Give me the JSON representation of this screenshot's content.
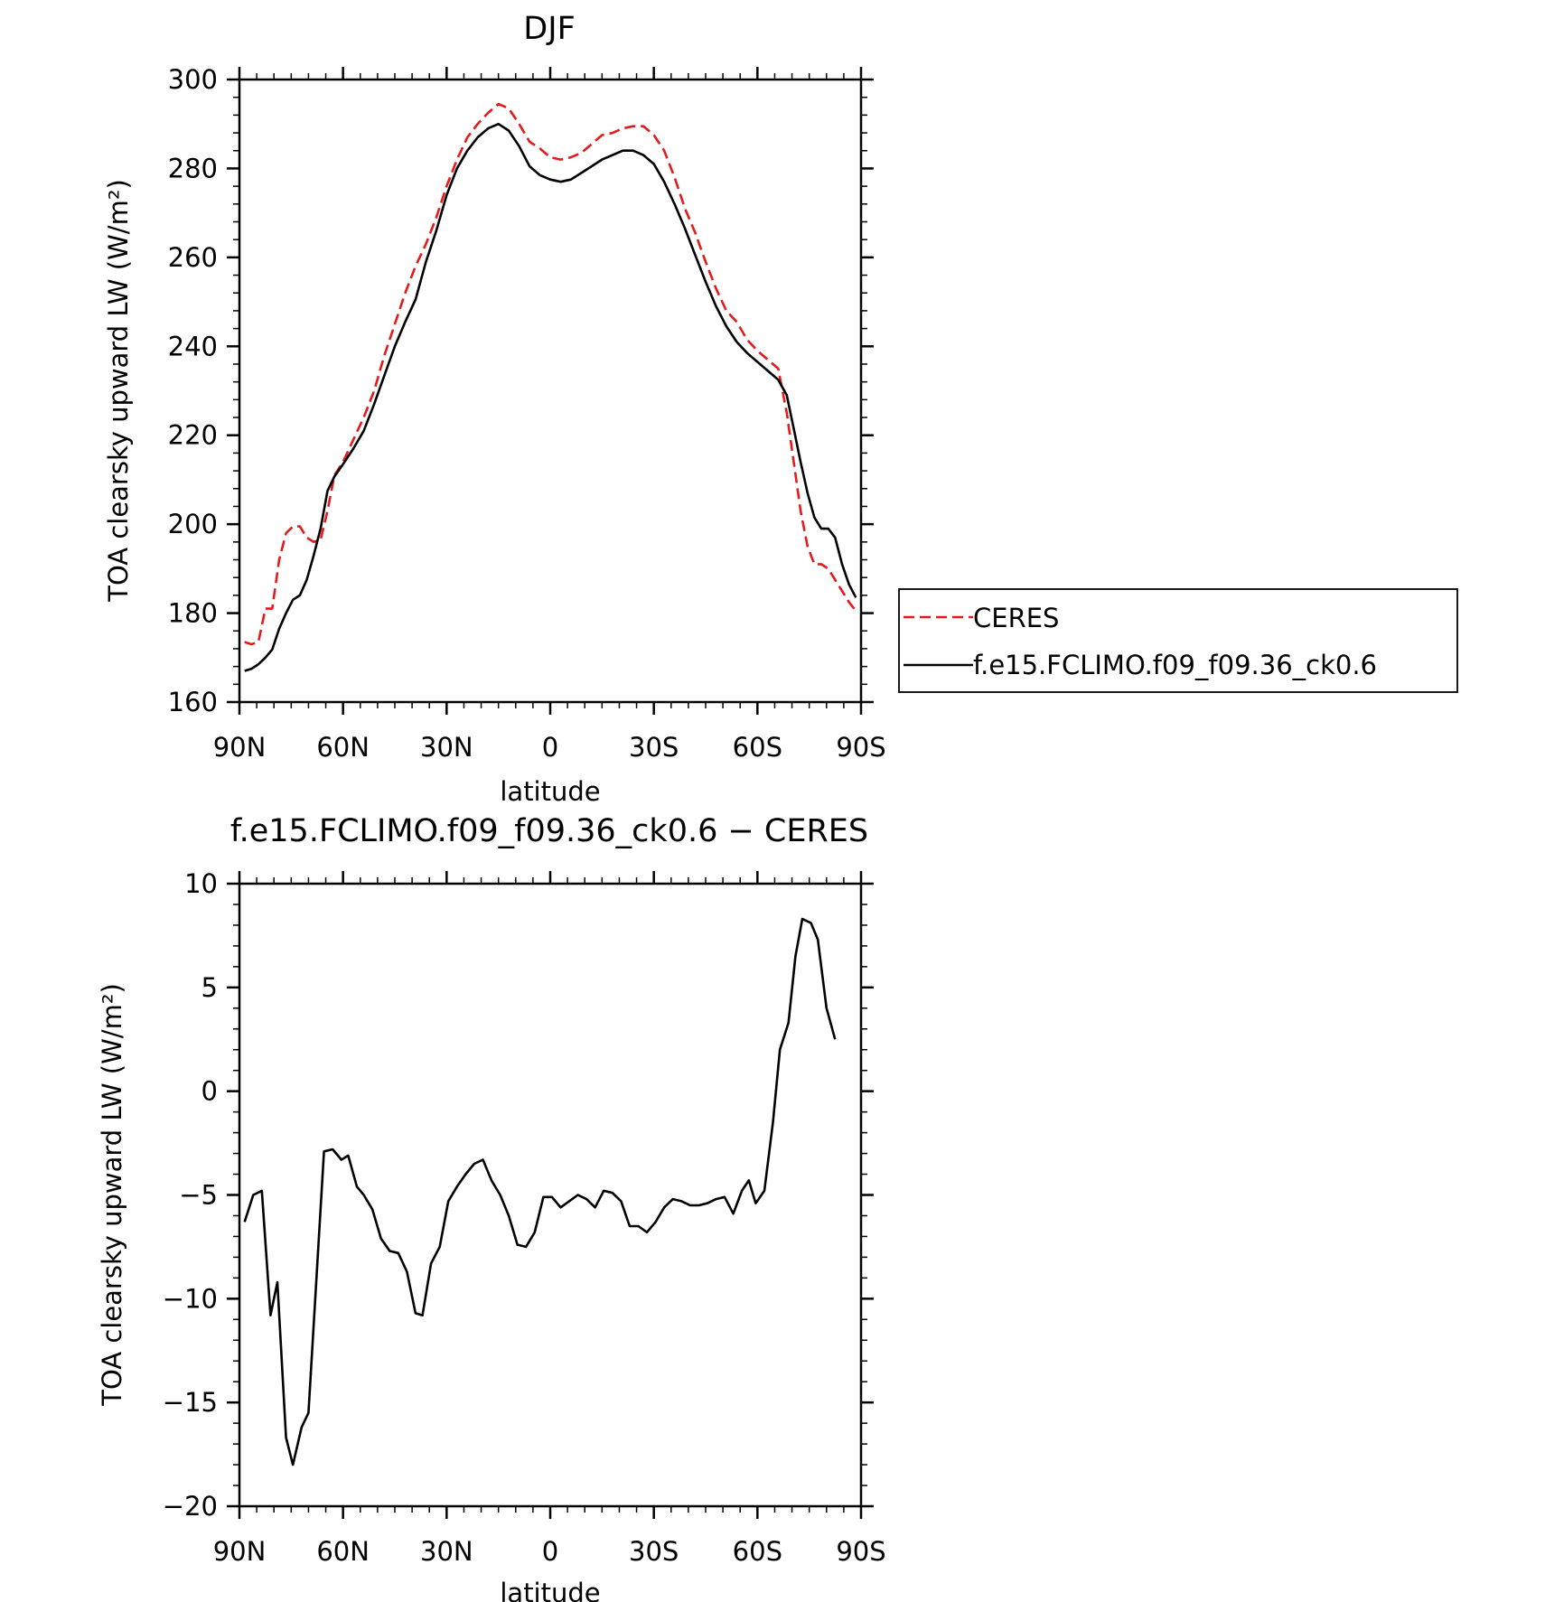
{
  "chart_data": [
    {
      "type": "line",
      "title": "DJF",
      "xlabel": "latitude",
      "ylabel": "TOA clearsky upward LW (W/m²)",
      "xlim": [
        90,
        -90
      ],
      "ylim": [
        160,
        300
      ],
      "x_ticks": [
        {
          "value": 90,
          "label": "90N"
        },
        {
          "value": 60,
          "label": "60N"
        },
        {
          "value": 30,
          "label": "30N"
        },
        {
          "value": 0,
          "label": "0"
        },
        {
          "value": -30,
          "label": "30S"
        },
        {
          "value": -60,
          "label": "60S"
        },
        {
          "value": -90,
          "label": "90S"
        }
      ],
      "y_ticks": [
        160,
        180,
        200,
        220,
        240,
        260,
        280,
        300
      ],
      "legend_position": "right",
      "series": [
        {
          "name": "CERES",
          "color": "#e41a1c",
          "style": "dashed",
          "points": [
            [
              88.5,
              173.5
            ],
            [
              86.5,
              173
            ],
            [
              84.5,
              173.5
            ],
            [
              82.5,
              181
            ],
            [
              80.5,
              181
            ],
            [
              78.5,
              192
            ],
            [
              76.5,
              198
            ],
            [
              74.5,
              199.5
            ],
            [
              72.5,
              199.5
            ],
            [
              70.5,
              197
            ],
            [
              68.5,
              196
            ],
            [
              66.5,
              196.5
            ],
            [
              64.5,
              203
            ],
            [
              62.5,
              211
            ],
            [
              60,
              214
            ],
            [
              57,
              219
            ],
            [
              54,
              224
            ],
            [
              51,
              230
            ],
            [
              48,
              238
            ],
            [
              45,
              245
            ],
            [
              42,
              252
            ],
            [
              39,
              258
            ],
            [
              36,
              263
            ],
            [
              33,
              269
            ],
            [
              30,
              276
            ],
            [
              27,
              282
            ],
            [
              24,
              287
            ],
            [
              21,
              290
            ],
            [
              18,
              292.5
            ],
            [
              15,
              294.5
            ],
            [
              12,
              293.5
            ],
            [
              9,
              290
            ],
            [
              6,
              286
            ],
            [
              3,
              284.5
            ],
            [
              0,
              282.5
            ],
            [
              -3,
              282
            ],
            [
              -6,
              282.5
            ],
            [
              -9,
              283.5
            ],
            [
              -12,
              285.5
            ],
            [
              -15,
              287.5
            ],
            [
              -18,
              288
            ],
            [
              -21,
              289
            ],
            [
              -24,
              289.5
            ],
            [
              -27,
              289.5
            ],
            [
              -30,
              287.5
            ],
            [
              -33,
              284
            ],
            [
              -36,
              278
            ],
            [
              -39,
              271
            ],
            [
              -42,
              265.5
            ],
            [
              -45,
              259
            ],
            [
              -48,
              253
            ],
            [
              -51,
              248
            ],
            [
              -54,
              245.5
            ],
            [
              -57,
              241.5
            ],
            [
              -60,
              239
            ],
            [
              -63,
              237
            ],
            [
              -66,
              235
            ],
            [
              -68.5,
              225
            ],
            [
              -70.5,
              214
            ],
            [
              -72.5,
              203
            ],
            [
              -74.5,
              195
            ],
            [
              -76.5,
              191
            ],
            [
              -78.5,
              191
            ],
            [
              -80.5,
              190
            ],
            [
              -82.5,
              187.5
            ],
            [
              -84.5,
              185
            ],
            [
              -86.5,
              182.5
            ],
            [
              -88.5,
              180.5
            ]
          ]
        },
        {
          "name": "f.e15.FCLIMO.f09_f09.36_ck0.6",
          "color": "#000000",
          "style": "solid",
          "points": [
            [
              88.5,
              167
            ],
            [
              86.5,
              167.5
            ],
            [
              84.5,
              168.5
            ],
            [
              82.5,
              170
            ],
            [
              80.5,
              171.8
            ],
            [
              78.5,
              176.5
            ],
            [
              76.5,
              180
            ],
            [
              74.5,
              183
            ],
            [
              72.5,
              184
            ],
            [
              70.5,
              187.5
            ],
            [
              68.5,
              193
            ],
            [
              66.5,
              199
            ],
            [
              64.5,
              207.5
            ],
            [
              62.5,
              210.7
            ],
            [
              60,
              213.5
            ],
            [
              57,
              217
            ],
            [
              54,
              221
            ],
            [
              51,
              227
            ],
            [
              48,
              233.5
            ],
            [
              45,
              240
            ],
            [
              42,
              245.5
            ],
            [
              39,
              250.5
            ],
            [
              36,
              259
            ],
            [
              33,
              266
            ],
            [
              30,
              274
            ],
            [
              27,
              280
            ],
            [
              24,
              284
            ],
            [
              21,
              287
            ],
            [
              18,
              289
            ],
            [
              15,
              290
            ],
            [
              12,
              288.5
            ],
            [
              9,
              285
            ],
            [
              6,
              280.5
            ],
            [
              3,
              278.5
            ],
            [
              0,
              277.5
            ],
            [
              -3,
              277
            ],
            [
              -6,
              277.5
            ],
            [
              -9,
              279
            ],
            [
              -12,
              280.5
            ],
            [
              -15,
              282
            ],
            [
              -18,
              283
            ],
            [
              -21,
              284
            ],
            [
              -24,
              284
            ],
            [
              -27,
              283
            ],
            [
              -30,
              281
            ],
            [
              -33,
              277
            ],
            [
              -36,
              272
            ],
            [
              -39,
              266.5
            ],
            [
              -42,
              260.5
            ],
            [
              -45,
              254.5
            ],
            [
              -48,
              249
            ],
            [
              -51,
              244.5
            ],
            [
              -54,
              241
            ],
            [
              -57,
              238.5
            ],
            [
              -60,
              236.5
            ],
            [
              -63,
              234.5
            ],
            [
              -66,
              232.5
            ],
            [
              -68.5,
              229
            ],
            [
              -70.5,
              221.5
            ],
            [
              -72.5,
              214
            ],
            [
              -74.5,
              207
            ],
            [
              -76.5,
              201.5
            ],
            [
              -78.5,
              199
            ],
            [
              -80.5,
              199
            ],
            [
              -82.5,
              197
            ],
            [
              -84.5,
              191
            ],
            [
              -86.5,
              186.5
            ],
            [
              -88.5,
              183.5
            ]
          ]
        }
      ]
    },
    {
      "type": "line",
      "title": "f.e15.FCLIMO.f09_f09.36_ck0.6 − CERES",
      "xlabel": "latitude",
      "ylabel": "TOA clearsky upward LW (W/m²)",
      "xlim": [
        90,
        -90
      ],
      "ylim": [
        -20,
        10
      ],
      "x_ticks": [
        {
          "value": 90,
          "label": "90N"
        },
        {
          "value": 60,
          "label": "60N"
        },
        {
          "value": 30,
          "label": "30N"
        },
        {
          "value": 0,
          "label": "0"
        },
        {
          "value": -30,
          "label": "30S"
        },
        {
          "value": -60,
          "label": "60S"
        },
        {
          "value": -90,
          "label": "90S"
        }
      ],
      "y_ticks": [
        {
          "value": -20,
          "label": "−20"
        },
        {
          "value": -15,
          "label": "−15"
        },
        {
          "value": -10,
          "label": "−10"
        },
        {
          "value": -5,
          "label": "−5"
        },
        {
          "value": 0,
          "label": "0"
        },
        {
          "value": 5,
          "label": "5"
        },
        {
          "value": 10,
          "label": "10"
        }
      ],
      "series": [
        {
          "color": "#000000",
          "style": "solid",
          "points": [
            [
              88.5,
              -6.3
            ],
            [
              86,
              -5
            ],
            [
              83.5,
              -4.8
            ],
            [
              81,
              -10.8
            ],
            [
              79,
              -9.2
            ],
            [
              76.5,
              -16.7
            ],
            [
              74.5,
              -18
            ],
            [
              72,
              -16.2
            ],
            [
              70,
              -15.5
            ],
            [
              65.5,
              -2.9
            ],
            [
              63,
              -2.8
            ],
            [
              60.5,
              -3.3
            ],
            [
              58.5,
              -3.1
            ],
            [
              56,
              -4.6
            ],
            [
              54,
              -5
            ],
            [
              51.5,
              -5.7
            ],
            [
              49,
              -7.1
            ],
            [
              46.5,
              -7.7
            ],
            [
              44,
              -7.8
            ],
            [
              41.5,
              -8.7
            ],
            [
              39,
              -10.7
            ],
            [
              37,
              -10.8
            ],
            [
              34.5,
              -8.3
            ],
            [
              32,
              -7.5
            ],
            [
              29.5,
              -5.3
            ],
            [
              27,
              -4.6
            ],
            [
              24.5,
              -4
            ],
            [
              22,
              -3.5
            ],
            [
              19.5,
              -3.3
            ],
            [
              17,
              -4.3
            ],
            [
              14.5,
              -5
            ],
            [
              12,
              -6
            ],
            [
              9.5,
              -7.4
            ],
            [
              7,
              -7.5
            ],
            [
              4.5,
              -6.8
            ],
            [
              2,
              -5.1
            ],
            [
              -0.5,
              -5.1
            ],
            [
              -3,
              -5.6
            ],
            [
              -5.5,
              -5.3
            ],
            [
              -8,
              -5
            ],
            [
              -10.5,
              -5.2
            ],
            [
              -13,
              -5.6
            ],
            [
              -15.5,
              -4.8
            ],
            [
              -18,
              -4.9
            ],
            [
              -20.5,
              -5.3
            ],
            [
              -23,
              -6.5
            ],
            [
              -25.5,
              -6.5
            ],
            [
              -28,
              -6.8
            ],
            [
              -30.5,
              -6.3
            ],
            [
              -33,
              -5.6
            ],
            [
              -35.5,
              -5.2
            ],
            [
              -38,
              -5.3
            ],
            [
              -40.5,
              -5.5
            ],
            [
              -43,
              -5.5
            ],
            [
              -45.5,
              -5.4
            ],
            [
              -48,
              -5.2
            ],
            [
              -50.5,
              -5.1
            ],
            [
              -53,
              -5.9
            ],
            [
              -55.5,
              -4.8
            ],
            [
              -57.5,
              -4.3
            ],
            [
              -59.5,
              -5.4
            ],
            [
              -62,
              -4.8
            ],
            [
              -64.5,
              -1.5
            ],
            [
              -66.5,
              2
            ],
            [
              -69,
              3.3
            ],
            [
              -71,
              6.5
            ],
            [
              -73,
              8.3
            ],
            [
              -75.5,
              8.1
            ],
            [
              -77.5,
              7.3
            ],
            [
              -80,
              4
            ],
            [
              -82.5,
              2.5
            ]
          ]
        }
      ]
    }
  ]
}
